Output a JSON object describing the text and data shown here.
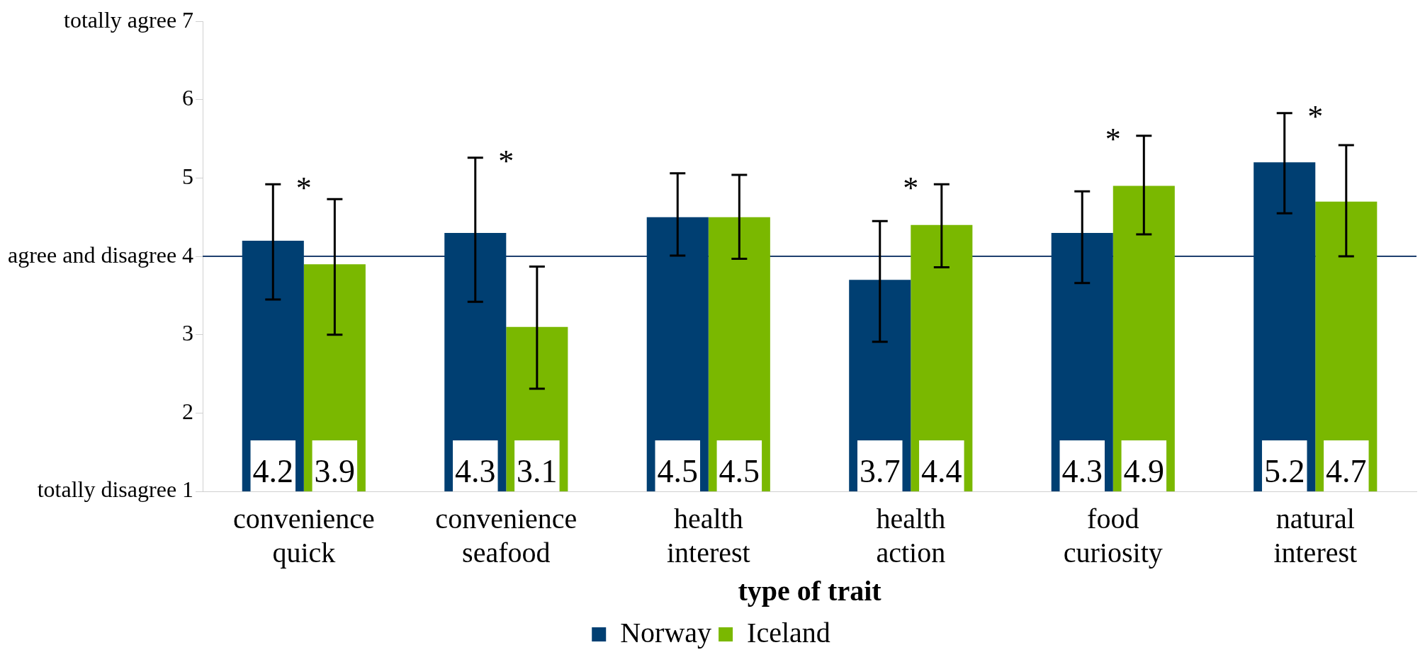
{
  "chart_data": {
    "type": "bar",
    "xlabel": "type of trait",
    "categories": [
      "convenience quick",
      "convenience seafood",
      "health interest",
      "health action",
      "food curiosity",
      "natural interest"
    ],
    "series": [
      {
        "name": "Norway",
        "color": "#003f72",
        "values": [
          4.2,
          4.3,
          4.5,
          3.7,
          4.3,
          5.2
        ],
        "errors": [
          [
            3.45,
            4.92
          ],
          [
            3.42,
            5.26
          ],
          [
            4.01,
            5.06
          ],
          [
            2.91,
            4.45
          ],
          [
            3.66,
            4.83
          ],
          [
            4.55,
            5.83
          ]
        ]
      },
      {
        "name": "Iceland",
        "color": "#7ab800",
        "values": [
          3.9,
          3.1,
          4.5,
          4.4,
          4.9,
          4.7
        ],
        "errors": [
          [
            3.0,
            4.73
          ],
          [
            2.31,
            3.87
          ],
          [
            3.97,
            5.04
          ],
          [
            3.86,
            4.92
          ],
          [
            4.28,
            5.54
          ],
          [
            4.0,
            5.42
          ]
        ]
      }
    ],
    "ylim": [
      1,
      7
    ],
    "yticks": [
      {
        "value": 1,
        "label": "totally disagree 1"
      },
      2,
      3,
      {
        "value": 4,
        "label": "agree and disagree 4"
      },
      5,
      6,
      {
        "value": 7,
        "label": "totally agree 7"
      }
    ],
    "ref_lines": [
      {
        "axis": "y",
        "value": 4,
        "color": "#1f3f6e"
      }
    ],
    "annotations": [
      "*",
      "*",
      "*",
      "*",
      "*"
    ],
    "data_labels": true,
    "grid": false,
    "legend": "bottom"
  }
}
